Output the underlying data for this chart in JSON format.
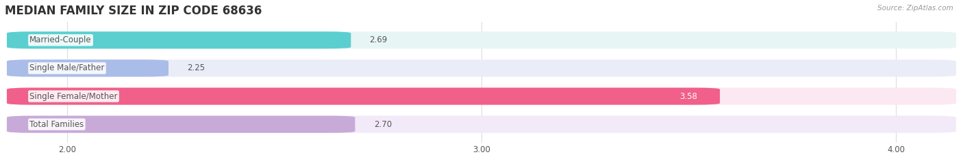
{
  "title": "MEDIAN FAMILY SIZE IN ZIP CODE 68636",
  "source": "Source: ZipAtlas.com",
  "categories": [
    "Married-Couple",
    "Single Male/Father",
    "Single Female/Mother",
    "Total Families"
  ],
  "values": [
    2.69,
    2.25,
    3.58,
    2.7
  ],
  "bar_colors": [
    "#5bcfcf",
    "#aabce8",
    "#f0608a",
    "#c8aad8"
  ],
  "bar_bg_colors": [
    "#e8f5f5",
    "#eaedf8",
    "#fce8f0",
    "#f2eaf8"
  ],
  "xlim": [
    1.85,
    4.15
  ],
  "xticks": [
    2.0,
    3.0,
    4.0
  ],
  "xtick_labels": [
    "2.00",
    "3.00",
    "4.00"
  ],
  "title_fontsize": 12,
  "label_fontsize": 8.5,
  "value_fontsize": 8.5,
  "bg_color": "#ffffff",
  "grid_color": "#dddddd",
  "bar_height": 0.6,
  "label_color": "#555555",
  "title_color": "#333333",
  "source_color": "#999999"
}
